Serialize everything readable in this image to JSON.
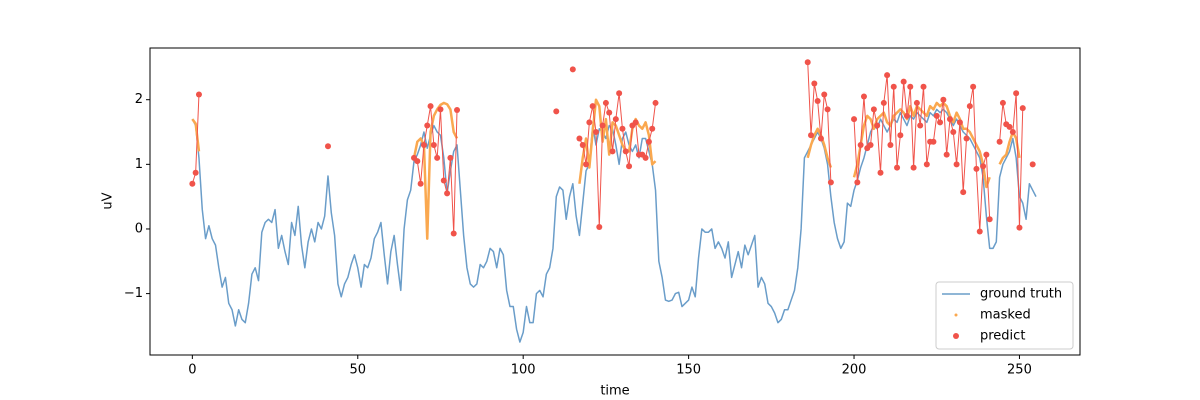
{
  "chart_data": {
    "type": "line",
    "xlabel": "time",
    "ylabel": "uV",
    "xlim": [
      -12.8,
      268.3
    ],
    "ylim": [
      -1.95,
      2.8
    ],
    "xticks": [
      0,
      50,
      100,
      150,
      200,
      250
    ],
    "yticks": [
      {
        "value": -1,
        "label": "−1"
      },
      0,
      1,
      2
    ],
    "grid": false,
    "legend": "lower right",
    "x": [
      0,
      1,
      2,
      3,
      4,
      5,
      6,
      7,
      8,
      9,
      10,
      11,
      12,
      13,
      14,
      15,
      16,
      17,
      18,
      19,
      20,
      21,
      22,
      23,
      24,
      25,
      26,
      27,
      28,
      29,
      30,
      31,
      32,
      33,
      34,
      35,
      36,
      37,
      38,
      39,
      40,
      41,
      42,
      43,
      44,
      45,
      46,
      47,
      48,
      49,
      50,
      51,
      52,
      53,
      54,
      55,
      56,
      57,
      58,
      59,
      60,
      61,
      62,
      63,
      64,
      65,
      66,
      67,
      68,
      69,
      70,
      71,
      72,
      73,
      74,
      75,
      76,
      77,
      78,
      79,
      80,
      81,
      82,
      83,
      84,
      85,
      86,
      87,
      88,
      89,
      90,
      91,
      92,
      93,
      94,
      95,
      96,
      97,
      98,
      99,
      100,
      101,
      102,
      103,
      104,
      105,
      106,
      107,
      108,
      109,
      110,
      111,
      112,
      113,
      114,
      115,
      116,
      117,
      118,
      119,
      120,
      121,
      122,
      123,
      124,
      125,
      126,
      127,
      128,
      129,
      130,
      131,
      132,
      133,
      134,
      135,
      136,
      137,
      138,
      139,
      140,
      141,
      142,
      143,
      144,
      145,
      146,
      147,
      148,
      149,
      150,
      151,
      152,
      153,
      154,
      155,
      156,
      157,
      158,
      159,
      160,
      161,
      162,
      163,
      164,
      165,
      166,
      167,
      168,
      169,
      170,
      171,
      172,
      173,
      174,
      175,
      176,
      177,
      178,
      179,
      180,
      181,
      182,
      183,
      184,
      185,
      186,
      187,
      188,
      189,
      190,
      191,
      192,
      193,
      194,
      195,
      196,
      197,
      198,
      199,
      200,
      201,
      202,
      203,
      204,
      205,
      206,
      207,
      208,
      209,
      210,
      211,
      212,
      213,
      214,
      215,
      216,
      217,
      218,
      219,
      220,
      221,
      222,
      223,
      224,
      225,
      226,
      227,
      228,
      229,
      230,
      231,
      232,
      233,
      234,
      235,
      236,
      237,
      238,
      239,
      240,
      241,
      242,
      243,
      244,
      245,
      246,
      247,
      248,
      249,
      250,
      251,
      252,
      253,
      254,
      255
    ],
    "series": [
      {
        "name": "ground truth",
        "color": "#6a9dc9",
        "values": [
          1.7,
          1.6,
          1.1,
          0.3,
          -0.15,
          0.05,
          -0.15,
          -0.25,
          -0.6,
          -0.9,
          -0.75,
          -1.15,
          -1.25,
          -1.5,
          -1.25,
          -1.4,
          -1.45,
          -1.15,
          -0.7,
          -0.6,
          -0.8,
          -0.05,
          0.1,
          0.15,
          0.1,
          0.3,
          -0.3,
          -0.1,
          -0.35,
          -0.55,
          0.1,
          -0.1,
          0.35,
          -0.25,
          -0.6,
          -0.2,
          0,
          -0.2,
          0.1,
          0,
          0.2,
          0.82,
          0.25,
          -0.1,
          -0.85,
          -1.05,
          -0.85,
          -0.75,
          -0.55,
          -0.4,
          -0.6,
          -0.9,
          -0.55,
          -0.6,
          -0.45,
          -0.15,
          -0.05,
          0.1,
          -0.4,
          -0.85,
          -0.35,
          -0.1,
          -0.55,
          -0.95,
          0,
          0.45,
          0.6,
          1.05,
          1.15,
          1.3,
          1.5,
          1.25,
          1.45,
          1.6,
          1.5,
          1.45,
          1.1,
          0.55,
          0.9,
          1.2,
          1.3,
          0.6,
          -0.1,
          -0.6,
          -0.85,
          -0.9,
          -0.85,
          -0.55,
          -0.6,
          -0.5,
          -0.3,
          -0.35,
          -0.6,
          -0.3,
          -0.4,
          -0.95,
          -1.2,
          -1.2,
          -1.55,
          -1.75,
          -1.6,
          -1.2,
          -1.45,
          -1.45,
          -1,
          -0.95,
          -1.05,
          -0.7,
          -0.6,
          -0.3,
          0.5,
          0.65,
          0.6,
          0.15,
          0.5,
          0.7,
          0.2,
          -0.1,
          0.4,
          0.9,
          1,
          1.6,
          1.3,
          1.55,
          1.5,
          1.4,
          1.6,
          1.55,
          1.3,
          1,
          1.4,
          1.5,
          1.3,
          1.2,
          1.3,
          1.1,
          1.4,
          1.4,
          1.2,
          1,
          0.6,
          -0.5,
          -0.75,
          -1.1,
          -1.12,
          -1.1,
          -1,
          -0.98,
          -1.2,
          -1.15,
          -1.1,
          -0.9,
          -1.05,
          -0.45,
          0,
          -0.05,
          -0.05,
          0,
          -0.3,
          -0.2,
          -0.3,
          -0.45,
          -0.2,
          -0.75,
          -0.55,
          -0.35,
          -0.6,
          -0.25,
          -0.4,
          -0.25,
          -0.1,
          -0.9,
          -0.75,
          -0.85,
          -1.15,
          -1.2,
          -1.3,
          -1.45,
          -1.4,
          -1.25,
          -1.25,
          -1.1,
          -0.95,
          -0.6,
          0,
          1.1,
          1.2,
          1.3,
          1.4,
          1.5,
          1.4,
          1.25,
          1,
          0.5,
          0.1,
          -0.15,
          -0.3,
          -0.2,
          0.4,
          0.35,
          0.6,
          0.75,
          0.95,
          1.1,
          1.3,
          1.5,
          1.6,
          1.55,
          1.7,
          1.6,
          1.5,
          1.6,
          1.7,
          1.65,
          1.8,
          1.7,
          1.6,
          1.75,
          1.7,
          1.8,
          1.75,
          1.7,
          1.65,
          1.8,
          1.75,
          1.85,
          1.8,
          1.85,
          1.8,
          1.7,
          1.6,
          1.7,
          1.6,
          1.5,
          1.45,
          1.4,
          1.3,
          1.2,
          1.1,
          0.8,
          0.2,
          -0.3,
          -0.3,
          -0.2,
          0.8,
          1,
          1.1,
          1.2,
          1.4,
          1.1,
          0.5,
          0.4,
          0.15,
          0.7,
          0.6,
          0.5
        ]
      },
      {
        "name": "masked",
        "color": "#faa84f",
        "values": [
          1.7,
          1.63,
          1.2,
          null,
          null,
          null,
          null,
          null,
          null,
          null,
          null,
          null,
          null,
          null,
          null,
          null,
          null,
          null,
          null,
          null,
          null,
          null,
          null,
          null,
          null,
          null,
          null,
          null,
          null,
          null,
          null,
          null,
          null,
          null,
          null,
          null,
          null,
          null,
          null,
          null,
          null,
          null,
          null,
          null,
          null,
          null,
          null,
          null,
          null,
          null,
          null,
          null,
          null,
          null,
          null,
          null,
          null,
          null,
          null,
          null,
          null,
          null,
          null,
          null,
          null,
          null,
          null,
          1.1,
          1.35,
          1.4,
          1.3,
          -0.15,
          1.5,
          1.75,
          1.85,
          1.92,
          1.95,
          1.93,
          1.85,
          1.5,
          1.4,
          null,
          null,
          null,
          null,
          null,
          null,
          null,
          null,
          null,
          null,
          null,
          null,
          null,
          null,
          null,
          null,
          null,
          null,
          null,
          null,
          null,
          null,
          null,
          null,
          null,
          null,
          null,
          null,
          null,
          null,
          null,
          null,
          null,
          null,
          null,
          null,
          0.7,
          1.1,
          1.4,
          0.95,
          1.5,
          2,
          1.9,
          1.35,
          1.7,
          1.15,
          1.65,
          1.6,
          1.45,
          1.3,
          1.2,
          1.2,
          1.55,
          1.7,
          1.6,
          1.55,
          1.65,
          1.45,
          1,
          1.05,
          null,
          null,
          null,
          null,
          null,
          null,
          null,
          null,
          null,
          null,
          null,
          null,
          null,
          null,
          null,
          null,
          null,
          null,
          null,
          null,
          null,
          null,
          null,
          null,
          null,
          null,
          null,
          null,
          null,
          null,
          null,
          null,
          null,
          null,
          null,
          null,
          null,
          null,
          null,
          null,
          null,
          null,
          null,
          null,
          null,
          1.1,
          1.3,
          1.45,
          1.55,
          1.45,
          1.3,
          1.1,
          0.95,
          null,
          null,
          null,
          null,
          null,
          null,
          0.8,
          1,
          1.3,
          1.6,
          1.75,
          1.7,
          1.55,
          1.7,
          1.75,
          1.8,
          1.65,
          1.6,
          1.75,
          1.8,
          1.85,
          1.8,
          1.7,
          1.9,
          1.75,
          1.9,
          1.85,
          1.8,
          1.75,
          1.9,
          1.85,
          1.95,
          1.9,
          1.95,
          1.9,
          1.75,
          1.65,
          1.8,
          1.7,
          1.55,
          1.55,
          1.5,
          1.4,
          1.3,
          1.2,
          1,
          0.65,
          0.8,
          null,
          null,
          1,
          1.1,
          1.15,
          1.35,
          1.5,
          1.4,
          1.1,
          null,
          null,
          null,
          null,
          null
        ]
      },
      {
        "name": "predict",
        "color": "#f0534a",
        "values": [
          0.7,
          0.87,
          2.08,
          null,
          null,
          null,
          null,
          null,
          null,
          null,
          null,
          null,
          null,
          null,
          null,
          null,
          null,
          null,
          null,
          null,
          null,
          null,
          null,
          null,
          null,
          null,
          null,
          null,
          null,
          null,
          null,
          null,
          null,
          null,
          null,
          null,
          null,
          null,
          null,
          null,
          null,
          1.28,
          null,
          null,
          null,
          null,
          null,
          null,
          null,
          null,
          null,
          null,
          null,
          null,
          null,
          null,
          null,
          null,
          null,
          null,
          null,
          null,
          null,
          null,
          null,
          null,
          null,
          1.1,
          1.05,
          0.7,
          1.3,
          1.6,
          1.9,
          1.3,
          1.1,
          1.85,
          0.75,
          0.55,
          1.1,
          -0.07,
          1.84,
          null,
          null,
          null,
          null,
          null,
          null,
          null,
          null,
          null,
          null,
          null,
          null,
          null,
          null,
          null,
          null,
          null,
          null,
          null,
          null,
          null,
          null,
          null,
          null,
          null,
          null,
          null,
          null,
          null,
          1.82,
          null,
          null,
          null,
          null,
          2.47,
          null,
          1.4,
          1.3,
          1,
          1.65,
          1.9,
          1.5,
          0.03,
          1.6,
          1.95,
          1.8,
          1.2,
          1.7,
          2.1,
          1.55,
          1.2,
          0.97,
          1.6,
          1.65,
          1.15,
          1.15,
          1.1,
          1.35,
          1.55,
          1.95,
          null,
          null,
          null,
          null,
          null,
          null,
          null,
          null,
          null,
          null,
          null,
          null,
          null,
          null,
          null,
          null,
          null,
          null,
          null,
          null,
          null,
          null,
          null,
          null,
          null,
          null,
          null,
          null,
          null,
          null,
          null,
          null,
          null,
          null,
          null,
          null,
          null,
          null,
          null,
          null,
          null,
          null,
          null,
          null,
          null,
          2.58,
          1.45,
          2.25,
          1.98,
          1.4,
          2.08,
          1.85,
          0.72,
          null,
          null,
          null,
          null,
          null,
          null,
          1.7,
          0.72,
          1.3,
          2.05,
          1.25,
          1.3,
          1.85,
          1.6,
          0.87,
          1.95,
          2.38,
          1.3,
          2.2,
          0.95,
          1.45,
          2.28,
          1.75,
          2.2,
          0.95,
          1.95,
          1.6,
          2.2,
          1,
          1.35,
          1.35,
          1.75,
          1.65,
          2,
          1.15,
          1.7,
          1.5,
          1,
          1.65,
          0.57,
          1.4,
          1.9,
          2.2,
          0.93,
          -0.04,
          0.97,
          1.15,
          0.15,
          null,
          null,
          1.35,
          1.95,
          1.62,
          1.58,
          1.5,
          2.1,
          0.02,
          1.87,
          null,
          null,
          1,
          null
        ]
      }
    ]
  }
}
